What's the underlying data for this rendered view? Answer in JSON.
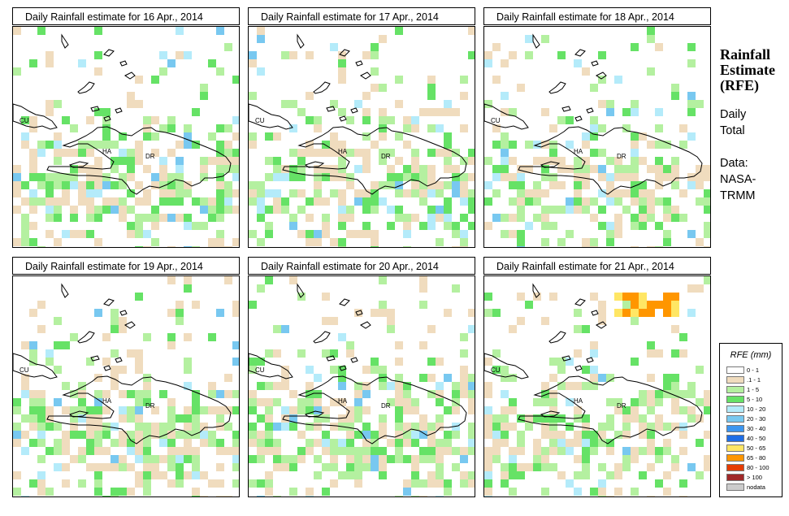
{
  "panels": [
    {
      "title": "Daily Rainfall estimate for  16 Apr., 2014",
      "seed": 16
    },
    {
      "title": "Daily Rainfall estimate for  17 Apr., 2014",
      "seed": 17
    },
    {
      "title": "Daily Rainfall estimate for  18 Apr., 2014",
      "seed": 18
    },
    {
      "title": "Daily Rainfall estimate for  19 Apr., 2014",
      "seed": 19
    },
    {
      "title": "Daily Rainfall estimate for  20 Apr., 2014",
      "seed": 20
    },
    {
      "title": "Daily Rainfall estimate for  21 Apr., 2014",
      "seed": 21
    }
  ],
  "map_labels": {
    "cuba": "CU",
    "haiti": "HA",
    "dominican_republic": "DR"
  },
  "sidebar": {
    "title_line1": "Rainfall",
    "title_line2": "Estimate",
    "title_line3": "(RFE)",
    "daily": "Daily",
    "total": "Total",
    "data_label": "Data:",
    "source_line1": "NASA-",
    "source_line2": "TRMM"
  },
  "legend": {
    "title": "RFE (mm)",
    "items": [
      {
        "label": "0 - 1",
        "color": "#ffffff"
      },
      {
        "label": ".1 - 1",
        "color": "#f0dcbe"
      },
      {
        "label": "1 - 5",
        "color": "#b4f0a0"
      },
      {
        "label": "5 - 10",
        "color": "#66e266"
      },
      {
        "label": "10 - 20",
        "color": "#b4ebfa"
      },
      {
        "label": "20 - 30",
        "color": "#78c8f0"
      },
      {
        "label": "30 - 40",
        "color": "#3c96f0"
      },
      {
        "label": "40 - 50",
        "color": "#1e6ee6"
      },
      {
        "label": "50 - 65",
        "color": "#ffe664"
      },
      {
        "label": "65 - 80",
        "color": "#ff9600"
      },
      {
        "label": "80 - 100",
        "color": "#e63c00"
      },
      {
        "label": "> 100",
        "color": "#a02828"
      },
      {
        "label": "nodata",
        "color": "#cccccc"
      }
    ]
  }
}
